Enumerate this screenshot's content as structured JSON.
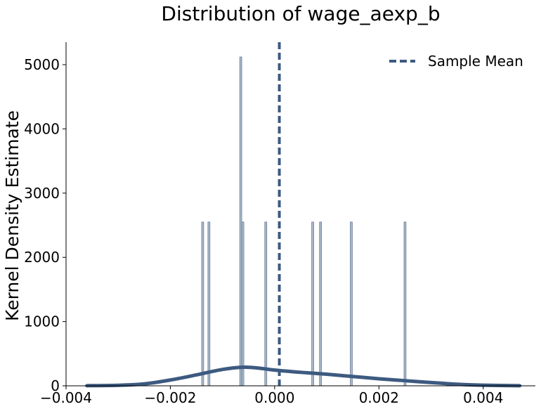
{
  "chart_data": {
    "type": "histogram+kde",
    "title": "Distribution of wage_aexp_b",
    "xlabel": "",
    "ylabel": "Kernel Density Estimate",
    "xlim": [
      -0.004,
      0.005
    ],
    "ylim": [
      0,
      5350
    ],
    "x_ticks": [
      -0.004,
      -0.002,
      0.0,
      0.002,
      0.004
    ],
    "x_tick_labels": [
      "−0.004",
      "−0.002",
      "0.000",
      "0.002",
      "0.004"
    ],
    "y_ticks": [
      0,
      1000,
      2000,
      3000,
      4000,
      5000
    ],
    "y_tick_labels": [
      "0",
      "1000",
      "2000",
      "3000",
      "4000",
      "5000"
    ],
    "histogram": {
      "bin_width": 3.9e-05,
      "bars": [
        {
          "x": -0.00138,
          "density": 2550
        },
        {
          "x": -0.00126,
          "density": 2550
        },
        {
          "x": -0.00065,
          "density": 5120
        },
        {
          "x": -0.00061,
          "density": 2550
        },
        {
          "x": -0.00017,
          "density": 2550
        },
        {
          "x": 0.00073,
          "density": 2550
        },
        {
          "x": 0.00088,
          "density": 2550
        },
        {
          "x": 0.00147,
          "density": 2550
        },
        {
          "x": 0.0025,
          "density": 2550
        }
      ]
    },
    "kde": {
      "x": [
        -0.0036,
        -0.003,
        -0.0025,
        -0.002,
        -0.0015,
        -0.001,
        -0.0006,
        -0.0003,
        0.0,
        0.0005,
        0.001,
        0.0015,
        0.002,
        0.0025,
        0.003,
        0.0035,
        0.004,
        0.0047
      ],
      "y": [
        2,
        8,
        30,
        90,
        170,
        255,
        290,
        275,
        245,
        210,
        180,
        145,
        110,
        80,
        50,
        25,
        10,
        2
      ]
    },
    "sample_mean": 9e-05,
    "legend": {
      "label": "Sample Mean",
      "position": "upper right"
    },
    "colors": {
      "line": "#3d5a80",
      "bar_fill": "#a9b8c8",
      "bar_edge": "#6b7f96"
    }
  }
}
